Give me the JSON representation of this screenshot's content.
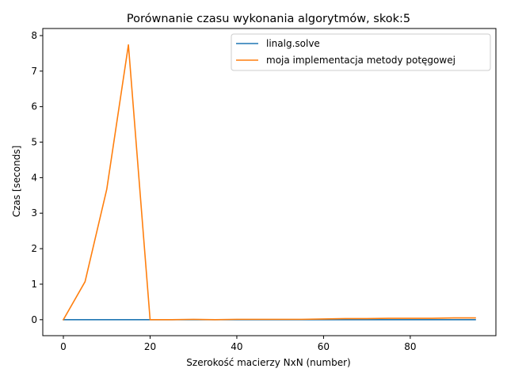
{
  "chart_data": {
    "type": "line",
    "title": "Porównanie czasu wykonania algorytmów, skok:5",
    "xlabel": "Szerokość macierzy NxN (number)",
    "ylabel": "Czas [seconds]",
    "xlim": [
      -4.75,
      99.75
    ],
    "ylim": [
      -0.45,
      8.2
    ],
    "xticks": [
      0,
      20,
      40,
      60,
      80
    ],
    "yticks": [
      0,
      1,
      2,
      3,
      4,
      5,
      6,
      7,
      8
    ],
    "grid": false,
    "legend_position": "top-right",
    "x": [
      0,
      5,
      10,
      15,
      20,
      25,
      30,
      35,
      40,
      45,
      50,
      55,
      60,
      65,
      70,
      75,
      80,
      85,
      90,
      95
    ],
    "series": [
      {
        "name": "linalg.solve",
        "color": "#1f77b4",
        "values": [
          0.0,
          0.0,
          0.0,
          0.0,
          0.0,
          0.0,
          0.0,
          0.0,
          0.0,
          0.0,
          0.0,
          0.0,
          0.0,
          0.0,
          0.0,
          0.0,
          0.0,
          0.0,
          0.0,
          0.0
        ]
      },
      {
        "name": "moja implementacja metody potęgowej",
        "color": "#ff7f0e",
        "values": [
          0.0,
          1.07,
          3.67,
          7.74,
          0.0,
          0.0,
          0.01,
          0.0,
          0.01,
          0.01,
          0.01,
          0.01,
          0.02,
          0.03,
          0.03,
          0.04,
          0.04,
          0.04,
          0.05,
          0.05
        ]
      }
    ]
  }
}
